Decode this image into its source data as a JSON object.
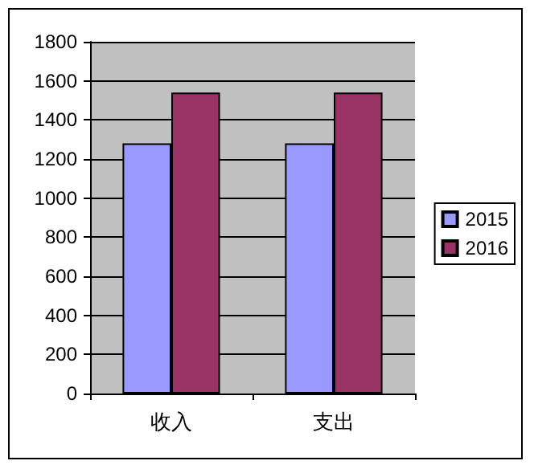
{
  "chart_data": {
    "type": "bar",
    "categories": [
      "收入",
      "支出"
    ],
    "series": [
      {
        "name": "2015",
        "color": "#9999ff",
        "values": [
          1280,
          1280
        ]
      },
      {
        "name": "2016",
        "color": "#993366",
        "values": [
          1540,
          1540
        ]
      }
    ],
    "ylim": [
      0,
      1800
    ],
    "yticks": [
      0,
      200,
      400,
      600,
      800,
      1000,
      1200,
      1400,
      1600,
      1800
    ],
    "grid": "y",
    "legend": "right"
  }
}
